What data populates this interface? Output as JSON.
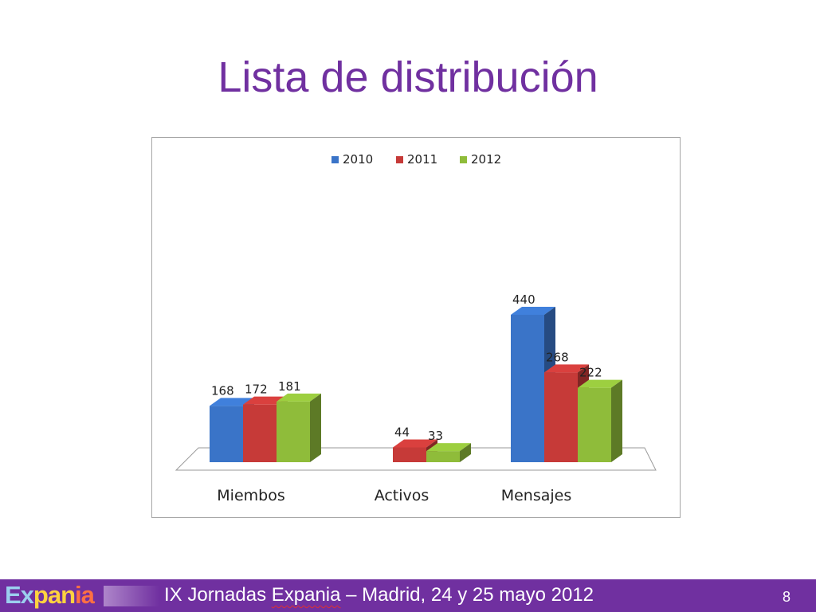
{
  "slide": {
    "title": "Lista de distribución"
  },
  "chart_data": {
    "type": "bar",
    "categories": [
      "Miembos",
      "Activos",
      "Mensajes"
    ],
    "series": [
      {
        "name": "2010",
        "values": [
          168,
          null,
          440
        ],
        "color": "#3a74c8"
      },
      {
        "name": "2011",
        "values": [
          172,
          44,
          268
        ],
        "color": "#c63a38"
      },
      {
        "name": "2012",
        "values": [
          181,
          33,
          222
        ],
        "color": "#8fbc3a"
      }
    ],
    "legend_position": "top",
    "grid": false,
    "ylim": [
      0,
      460
    ]
  },
  "footer": {
    "logo": {
      "part1": "Ex",
      "part2": "pan",
      "part3": "ia"
    },
    "text_prefix": "IX Jornadas ",
    "text_brand": "Expania",
    "text_suffix": " – Madrid, 24 y 25 mayo 2012",
    "page_number": "8"
  }
}
